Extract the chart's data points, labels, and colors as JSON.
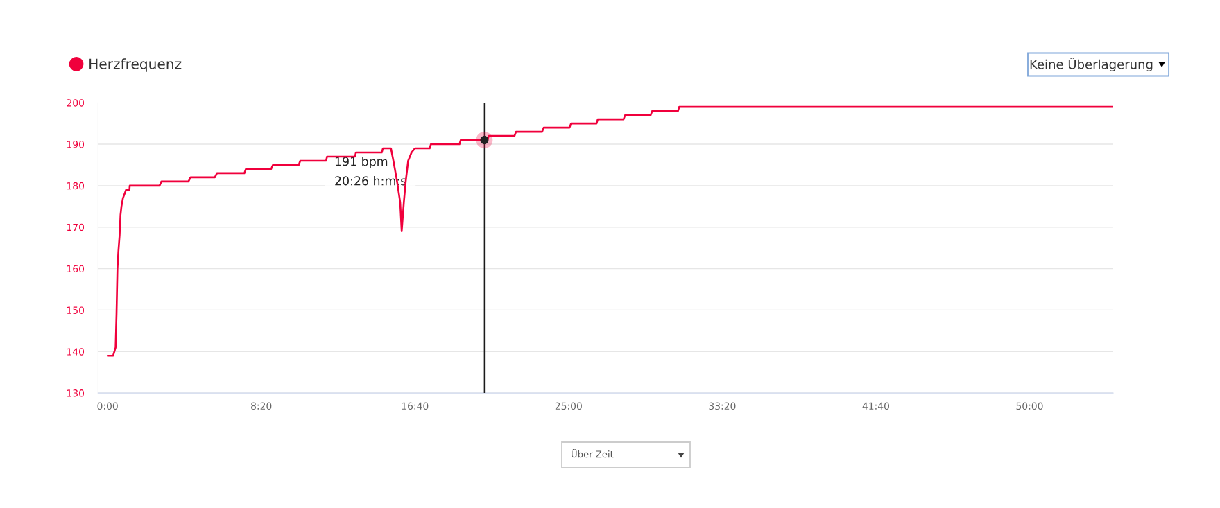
{
  "chart_data": {
    "type": "line",
    "x": [
      0,
      18,
      26,
      29,
      32,
      35,
      39,
      42,
      45,
      50,
      55,
      60,
      71,
      72,
      169,
      175,
      263,
      270,
      349,
      356,
      445,
      450,
      532,
      538,
      622,
      627,
      711,
      714,
      805,
      808,
      892,
      896,
      922,
      930,
      942,
      952,
      957,
      964,
      970,
      978,
      989,
      1000,
      1048,
      1052,
      1145,
      1149,
      1236,
      1240,
      1324,
      1329,
      1414,
      1419,
      1503,
      1508,
      1591,
      1595,
      1679,
      1684,
      1767,
      1772,
      1856,
      1860,
      3272
    ],
    "series": [
      {
        "name": "Herzfrequenz",
        "color": "#f0003c",
        "values": [
          139,
          139,
          141,
          149,
          160,
          164,
          168,
          173,
          175,
          177,
          178,
          179,
          179,
          180,
          180,
          181,
          181,
          182,
          182,
          183,
          183,
          184,
          184,
          185,
          185,
          186,
          186,
          187,
          187,
          188,
          188,
          189,
          189,
          186,
          181,
          176,
          169,
          176,
          181,
          186,
          188,
          189,
          189,
          190,
          190,
          191,
          191,
          192,
          192,
          193,
          193,
          194,
          194,
          195,
          195,
          196,
          196,
          197,
          197,
          198,
          198,
          199,
          199
        ]
      },
      {
        "type": "scatter",
        "color": "#222222",
        "x": [
          1226
        ],
        "values": [
          191
        ]
      }
    ],
    "xlim": [
      -31,
      3272
    ],
    "xticks": [
      {
        "value": 0,
        "label": "0:00"
      },
      {
        "value": 500,
        "label": "8:20"
      },
      {
        "value": 1000,
        "label": "16:40"
      },
      {
        "value": 1500,
        "label": "25:00"
      },
      {
        "value": 2000,
        "label": "33:20"
      },
      {
        "value": 2500,
        "label": "41:40"
      },
      {
        "value": 3000,
        "label": "50:00"
      }
    ],
    "ylim": [
      130,
      200
    ],
    "yticks": [
      130,
      140,
      150,
      160,
      170,
      180,
      190,
      200
    ],
    "grid": "y",
    "legend": "top left",
    "ref_lines": [
      {
        "axis": "x",
        "value": 1226,
        "color": "#1a1a1a"
      }
    ],
    "annotations": [
      "191 bpm\n20:26 h:m:s",
      "Keine Überlagerung",
      "Über Zeit"
    ]
  }
}
